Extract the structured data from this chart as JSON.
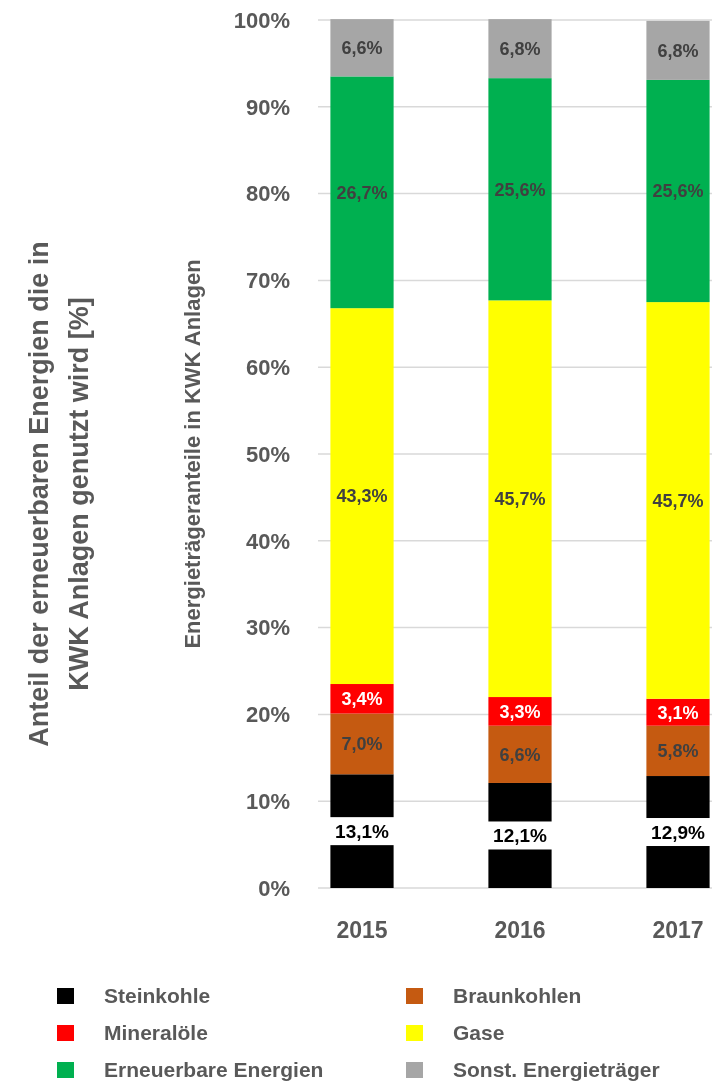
{
  "chart_data": {
    "type": "bar",
    "stacked": true,
    "ylabel": "Energieträgeranteile in KWK Anlagen",
    "annotations": [
      "Anteil der erneuerbaren Energien die in KWK Anlagen genutzt wird [%]"
    ],
    "categories": [
      "2015",
      "2016",
      "2017"
    ],
    "series": [
      {
        "name": "Steinkohle",
        "color": "#000000",
        "values": [
          13.1,
          12.1,
          12.9
        ],
        "value_labels": [
          "13,1%",
          "12,1%",
          "12,9%"
        ]
      },
      {
        "name": "Braunkohlen",
        "color": "#c55a11",
        "values": [
          7.0,
          6.6,
          5.8
        ],
        "value_labels": [
          "7,0%",
          "6,6%",
          "5,8%"
        ]
      },
      {
        "name": "Mineralöle",
        "color": "#ff0000",
        "values": [
          3.4,
          3.3,
          3.1
        ],
        "value_labels": [
          "3,4%",
          "3,3%",
          "3,1%"
        ]
      },
      {
        "name": "Gase",
        "color": "#ffff00",
        "values": [
          43.3,
          45.7,
          45.7
        ],
        "value_labels": [
          "43,3%",
          "45,7%",
          "45,7%"
        ]
      },
      {
        "name": "Erneuerbare Energien",
        "color": "#00b050",
        "values": [
          26.7,
          25.6,
          25.6
        ],
        "value_labels": [
          "26,7%",
          "25,6%",
          "25,6%"
        ]
      },
      {
        "name": "Sonst. Energieträger",
        "color": "#a6a6a6",
        "values": [
          6.6,
          6.8,
          6.8
        ],
        "value_labels": [
          "6,6%",
          "6,8%",
          "6,8%"
        ]
      }
    ],
    "ylim": [
      0,
      100
    ],
    "yticks": [
      {
        "value": 0,
        "label": "0%"
      },
      {
        "value": 10,
        "label": "10%"
      },
      {
        "value": 20,
        "label": "20%"
      },
      {
        "value": 30,
        "label": "30%"
      },
      {
        "value": 40,
        "label": "40%"
      },
      {
        "value": 50,
        "label": "50%"
      },
      {
        "value": 60,
        "label": "60%"
      },
      {
        "value": 70,
        "label": "70%"
      },
      {
        "value": 80,
        "label": "80%"
      },
      {
        "value": 90,
        "label": "90%"
      },
      {
        "value": 100,
        "label": "100%"
      }
    ],
    "grid": "y",
    "legend": "bottom"
  }
}
